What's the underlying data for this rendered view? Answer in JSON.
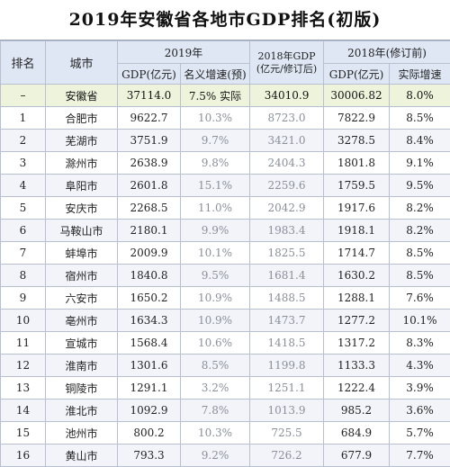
{
  "title": "2019年安徽省各地市GDP排名(初版)",
  "headers": {
    "rank": "排名",
    "city": "城市",
    "group_2019": "2019年",
    "gdp_2019": "GDP(亿元)",
    "growth_2019": "名义增速(预)",
    "gdp_2018_revised_l1": "2018年GDP",
    "gdp_2018_revised_l2": "(亿元/修订后)",
    "group_2018_orig": "2018年(修订前)",
    "gdp_2018_orig": "GDP(亿元)",
    "growth_2018_orig": "实际增速"
  },
  "province": {
    "rank": "–",
    "name": "安徽省",
    "gdp_2019": "37114.0",
    "growth_2019": "7.5% 实际",
    "gdp_2018_revised": "34010.9",
    "gdp_2018_orig": "30006.82",
    "growth_2018_orig": "8.0%"
  },
  "rows": [
    {
      "rank": "1",
      "city": "合肥市",
      "gdp_2019": "9622.7",
      "growth_2019": "10.3%",
      "gdp_2018_revised": "8723.0",
      "gdp_2018_orig": "7822.9",
      "growth_2018_orig": "8.5%"
    },
    {
      "rank": "2",
      "city": "芜湖市",
      "gdp_2019": "3751.9",
      "growth_2019": "9.7%",
      "gdp_2018_revised": "3421.0",
      "gdp_2018_orig": "3278.5",
      "growth_2018_orig": "8.4%"
    },
    {
      "rank": "3",
      "city": "滁州市",
      "gdp_2019": "2638.9",
      "growth_2019": "9.8%",
      "gdp_2018_revised": "2404.3",
      "gdp_2018_orig": "1801.8",
      "growth_2018_orig": "9.1%"
    },
    {
      "rank": "4",
      "city": "阜阳市",
      "gdp_2019": "2601.8",
      "growth_2019": "15.1%",
      "gdp_2018_revised": "2259.6",
      "gdp_2018_orig": "1759.5",
      "growth_2018_orig": "9.5%"
    },
    {
      "rank": "5",
      "city": "安庆市",
      "gdp_2019": "2268.5",
      "growth_2019": "11.0%",
      "gdp_2018_revised": "2042.9",
      "gdp_2018_orig": "1917.6",
      "growth_2018_orig": "8.2%"
    },
    {
      "rank": "6",
      "city": "马鞍山市",
      "gdp_2019": "2180.1",
      "growth_2019": "9.9%",
      "gdp_2018_revised": "1983.4",
      "gdp_2018_orig": "1918.1",
      "growth_2018_orig": "8.2%"
    },
    {
      "rank": "7",
      "city": "蚌埠市",
      "gdp_2019": "2009.9",
      "growth_2019": "10.1%",
      "gdp_2018_revised": "1825.5",
      "gdp_2018_orig": "1714.7",
      "growth_2018_orig": "8.5%"
    },
    {
      "rank": "8",
      "city": "宿州市",
      "gdp_2019": "1840.8",
      "growth_2019": "9.5%",
      "gdp_2018_revised": "1681.4",
      "gdp_2018_orig": "1630.2",
      "growth_2018_orig": "8.5%"
    },
    {
      "rank": "9",
      "city": "六安市",
      "gdp_2019": "1650.2",
      "growth_2019": "10.9%",
      "gdp_2018_revised": "1488.5",
      "gdp_2018_orig": "1288.1",
      "growth_2018_orig": "7.6%"
    },
    {
      "rank": "10",
      "city": "亳州市",
      "gdp_2019": "1634.3",
      "growth_2019": "10.9%",
      "gdp_2018_revised": "1473.7",
      "gdp_2018_orig": "1277.2",
      "growth_2018_orig": "10.1%"
    },
    {
      "rank": "11",
      "city": "宣城市",
      "gdp_2019": "1568.4",
      "growth_2019": "10.6%",
      "gdp_2018_revised": "1418.5",
      "gdp_2018_orig": "1317.2",
      "growth_2018_orig": "8.3%"
    },
    {
      "rank": "12",
      "city": "淮南市",
      "gdp_2019": "1301.6",
      "growth_2019": "8.5%",
      "gdp_2018_revised": "1199.8",
      "gdp_2018_orig": "1133.3",
      "growth_2018_orig": "4.3%"
    },
    {
      "rank": "13",
      "city": "铜陵市",
      "gdp_2019": "1291.1",
      "growth_2019": "3.2%",
      "gdp_2018_revised": "1251.1",
      "gdp_2018_orig": "1222.4",
      "growth_2018_orig": "3.9%"
    },
    {
      "rank": "14",
      "city": "淮北市",
      "gdp_2019": "1092.9",
      "growth_2019": "7.8%",
      "gdp_2018_revised": "1013.9",
      "gdp_2018_orig": "985.2",
      "growth_2018_orig": "3.6%"
    },
    {
      "rank": "15",
      "city": "池州市",
      "gdp_2019": "800.2",
      "growth_2019": "10.3%",
      "gdp_2018_revised": "725.5",
      "gdp_2018_orig": "684.9",
      "growth_2018_orig": "5.7%"
    },
    {
      "rank": "16",
      "city": "黄山市",
      "gdp_2019": "793.3",
      "growth_2019": "9.2%",
      "gdp_2018_revised": "726.2",
      "gdp_2018_orig": "677.9",
      "growth_2018_orig": "7.7%"
    }
  ]
}
